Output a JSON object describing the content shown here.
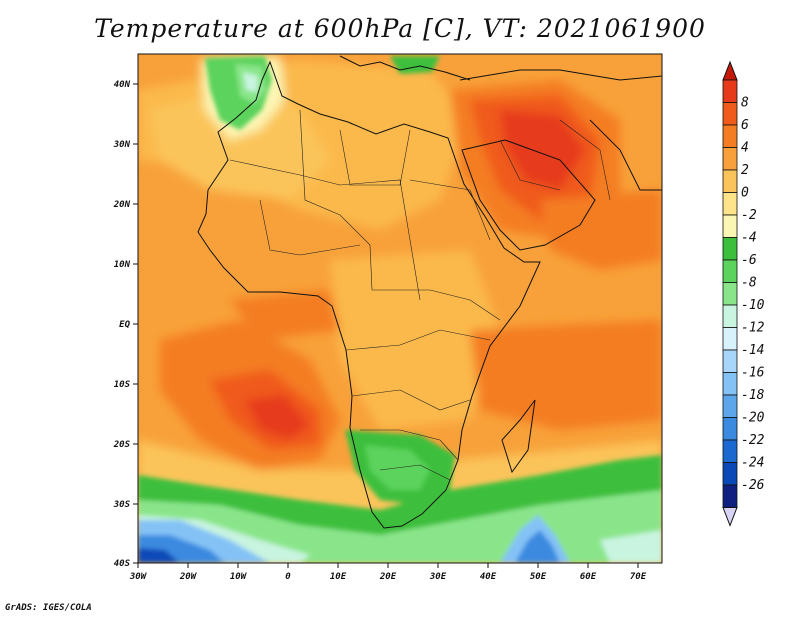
{
  "title": "Temperature at 600hPa [C], VT: 2021061900",
  "credit": "GrADS: IGES/COLA",
  "map": {
    "lon_range": [
      -30,
      75
    ],
    "lat_range": [
      -40,
      45
    ],
    "lon_ticks": [
      "30W",
      "20W",
      "10W",
      "0",
      "10E",
      "20E",
      "30E",
      "40E",
      "50E",
      "60E",
      "70E"
    ],
    "lat_ticks": [
      "40N",
      "30N",
      "20N",
      "10N",
      "EQ",
      "10S",
      "20S",
      "30S",
      "40S"
    ]
  },
  "colorbar": {
    "labels": [
      "8",
      "6",
      "4",
      "2",
      "0",
      "-2",
      "-4",
      "-6",
      "-8",
      "-10",
      "-12",
      "-14",
      "-16",
      "-18",
      "-20",
      "-22",
      "-24",
      "-26"
    ],
    "colors": [
      "#e63a1a",
      "#f05a1a",
      "#f47d22",
      "#f8a13a",
      "#fbc45a",
      "#fde48a",
      "#fcf6b4",
      "#3cbf3c",
      "#5cd35c",
      "#8ae58a",
      "#c8f4e0",
      "#d8f2fc",
      "#a8d6fa",
      "#84c2f6",
      "#5ea6ec",
      "#3a8ae0",
      "#1a68d0",
      "#0a48b8",
      "#102080"
    ],
    "top_color": "#c41808",
    "bottom_color": "#d8d4f4"
  },
  "legend_colors": {
    "warm_core": "#d82a10",
    "land_border": "#111111"
  }
}
